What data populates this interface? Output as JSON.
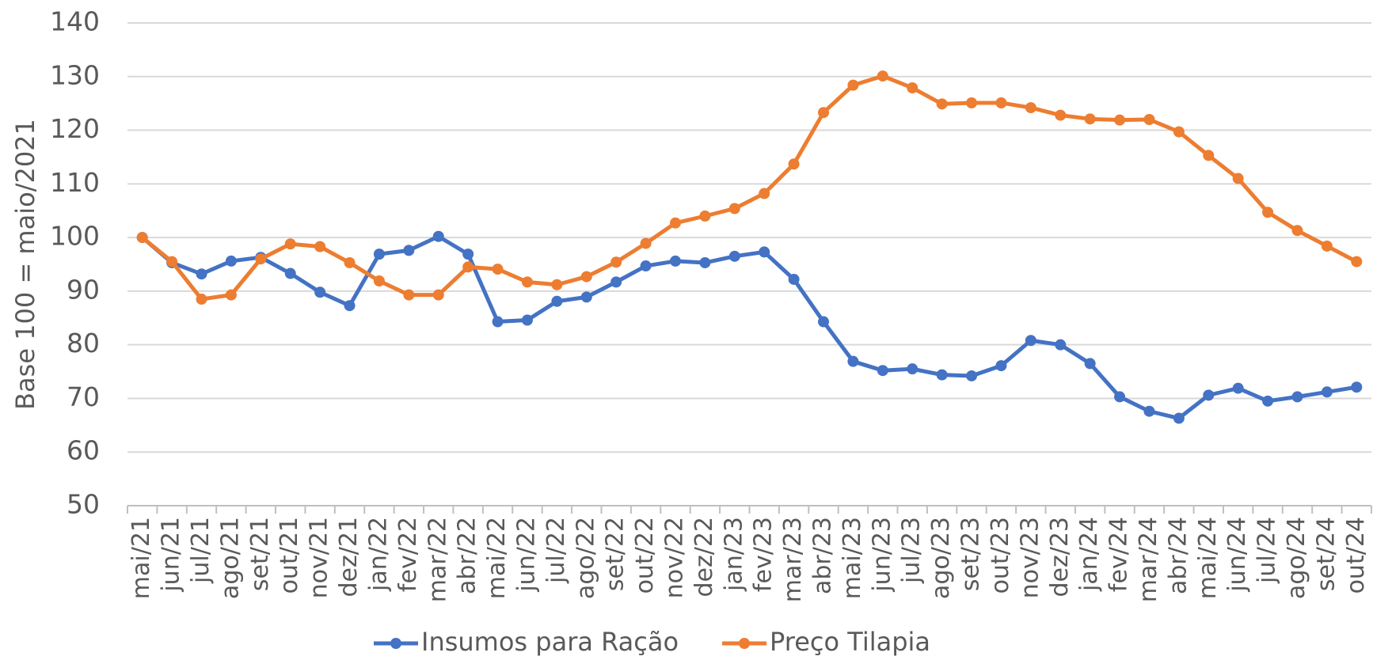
{
  "chart_data": {
    "type": "line",
    "y_label": "Base 100 = maio/2021",
    "categories": [
      "mai/21",
      "jun/21",
      "jul/21",
      "ago/21",
      "set/21",
      "out/21",
      "nov/21",
      "dez/21",
      "jan/22",
      "fev/22",
      "mar/22",
      "abr/22",
      "mai/22",
      "jun/22",
      "jul/22",
      "ago/22",
      "set/22",
      "out/22",
      "nov/22",
      "dez/22",
      "jan/23",
      "fev/23",
      "mar/23",
      "abr/23",
      "mai/23",
      "jun/23",
      "jul/23",
      "ago/23",
      "set/23",
      "out/23",
      "nov/23",
      "dez/23",
      "jan/24",
      "fev/24",
      "mar/24",
      "abr/24",
      "mai/24",
      "jun/24",
      "jul/24",
      "ago/24",
      "set/24",
      "out/24"
    ],
    "series": [
      {
        "name": "Insumos para Ração",
        "color": "#4472c4",
        "values": [
          100,
          95.3,
          93.2,
          95.6,
          96.3,
          93.3,
          89.8,
          87.3,
          96.9,
          97.6,
          100.2,
          96.9,
          84.3,
          84.6,
          88.1,
          88.9,
          91.7,
          94.7,
          95.6,
          95.3,
          96.5,
          97.3,
          92.2,
          84.3,
          76.9,
          75.2,
          75.5,
          74.4,
          74.2,
          76.1,
          80.8,
          80,
          76.5,
          70.3,
          67.6,
          66.3,
          70.6,
          71.9,
          69.5,
          70.3,
          71.2,
          72.1
        ]
      },
      {
        "name": "Preço Tilapia",
        "color": "#ed7d31",
        "values": [
          100,
          95.5,
          88.5,
          89.3,
          96,
          98.8,
          98.3,
          95.3,
          91.9,
          89.3,
          89.3,
          94.5,
          94.1,
          91.7,
          91.2,
          92.7,
          95.4,
          98.9,
          102.7,
          104,
          105.4,
          108.2,
          113.7,
          123.3,
          128.4,
          130.1,
          127.9,
          124.9,
          125.1,
          125.1,
          124.2,
          122.8,
          122.1,
          121.9,
          122,
          119.7,
          115.3,
          111,
          104.7,
          101.3,
          98.4,
          95.5
        ]
      }
    ],
    "ylim": [
      50,
      140
    ],
    "yticks": [
      50,
      60,
      70,
      80,
      90,
      100,
      110,
      120,
      130,
      140
    ],
    "grid": true
  }
}
